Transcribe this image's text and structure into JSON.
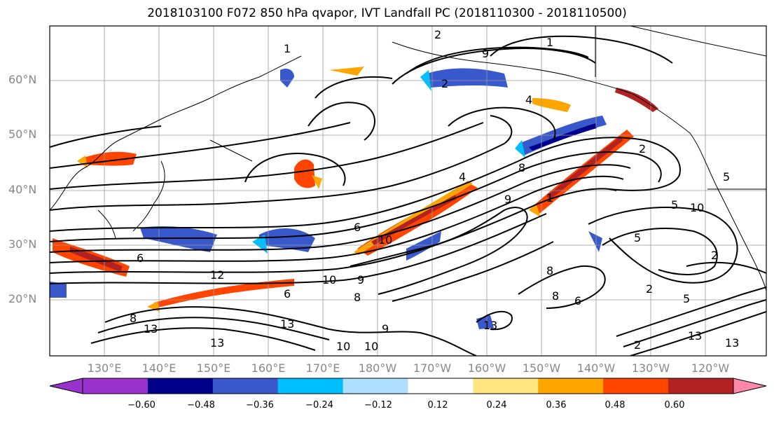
{
  "title": "2018103100 F072 850 hPa qvapor, IVT Landfall PC (2018110300 - 2018110500)",
  "lat_labels": [
    "60°N",
    "50°N",
    "40°N",
    "30°N",
    "20°N"
  ],
  "lon_labels": [
    "130°E",
    "140°E",
    "150°E",
    "160°E",
    "170°E",
    "180°W",
    "170°W",
    "160°W",
    "150°W",
    "140°W",
    "130°W",
    "120°W"
  ],
  "colorbar": {
    "ticks": [
      "−0.60",
      "−0.48",
      "−0.36",
      "−0.24",
      "−0.12",
      "0.12",
      "0.24",
      "0.36",
      "0.48",
      "0.60"
    ],
    "colors": [
      "#9932cc",
      "#00008b",
      "#3858cc",
      "#00bfff",
      "#b0e0ff",
      "#ffffff",
      "#ffe680",
      "#ffa500",
      "#ff4500",
      "#b22222",
      "#ff88aa"
    ]
  },
  "contour_labels": [
    "1",
    "2",
    "4",
    "5",
    "6",
    "8",
    "9",
    "10",
    "12",
    "13"
  ]
}
